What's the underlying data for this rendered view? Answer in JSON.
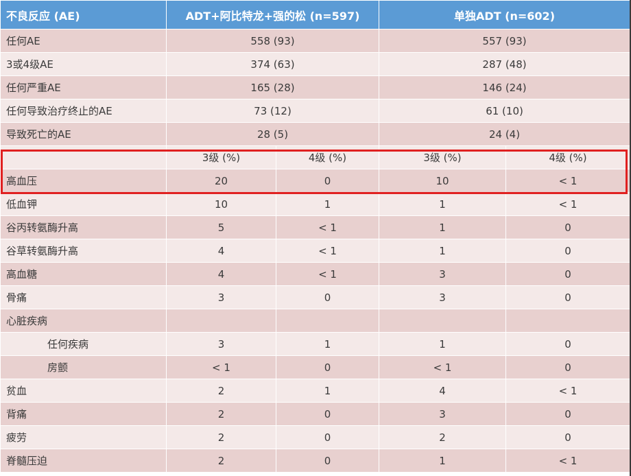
{
  "header": {
    "col_ae": "不良反应 (AE)",
    "col_combo": "ADT+阿比特龙+强的松 (n=597)",
    "col_adt": "单独ADT (n=602)"
  },
  "summary_rows": [
    {
      "label": "任何AE",
      "combo": "558 (93)",
      "adt": "557 (93)"
    },
    {
      "label": "3或4级AE",
      "combo": "374 (63)",
      "adt": "287 (48)"
    },
    {
      "label": "任何严重AE",
      "combo": "165 (28)",
      "adt": "146 (24)"
    },
    {
      "label": "任何导致治疗终止的AE",
      "combo": "73 (12)",
      "adt": "61 (10)"
    },
    {
      "label": "导致死亡的AE",
      "combo": "28 (5)",
      "adt": "24 (4)"
    }
  ],
  "grade_header": {
    "g3a": "3级 (%)",
    "g4a": "4级 (%)",
    "g3b": "3级 (%)",
    "g4b": "4级 (%)"
  },
  "grade_rows": [
    {
      "label": "高血压",
      "c3": "20",
      "c4": "0",
      "a3": "10",
      "a4": "< 1"
    },
    {
      "label": "低血钾",
      "c3": "10",
      "c4": "1",
      "a3": "1",
      "a4": "< 1"
    },
    {
      "label": "谷丙转氨酶升高",
      "c3": "5",
      "c4": "< 1",
      "a3": "1",
      "a4": "0"
    },
    {
      "label": "谷草转氨酶升高",
      "c3": "4",
      "c4": "< 1",
      "a3": "1",
      "a4": "0"
    },
    {
      "label": "高血糖",
      "c3": "4",
      "c4": "< 1",
      "a3": "3",
      "a4": "0"
    },
    {
      "label": "骨痛",
      "c3": "3",
      "c4": "0",
      "a3": "3",
      "a4": "0"
    },
    {
      "label": "心脏疾病",
      "c3": "",
      "c4": "",
      "a3": "",
      "a4": ""
    },
    {
      "label": "任何疾病",
      "c3": "3",
      "c4": "1",
      "a3": "1",
      "a4": "0"
    },
    {
      "label": "房颤",
      "c3": "< 1",
      "c4": "0",
      "a3": "< 1",
      "a4": "0"
    },
    {
      "label": "贫血",
      "c3": "2",
      "c4": "1",
      "a3": "4",
      "a4": "< 1"
    },
    {
      "label": "背痛",
      "c3": "2",
      "c4": "0",
      "a3": "3",
      "a4": "0"
    },
    {
      "label": "疲劳",
      "c3": "2",
      "c4": "0",
      "a3": "2",
      "a4": "0"
    },
    {
      "label": "脊髓压迫",
      "c3": "2",
      "c4": "0",
      "a3": "1",
      "a4": "< 1"
    }
  ],
  "colors": {
    "header_bg": "#5b9bd5",
    "row_dark": "#e8d0cf",
    "row_light": "#f4e9e8",
    "highlight": "#e02020"
  }
}
